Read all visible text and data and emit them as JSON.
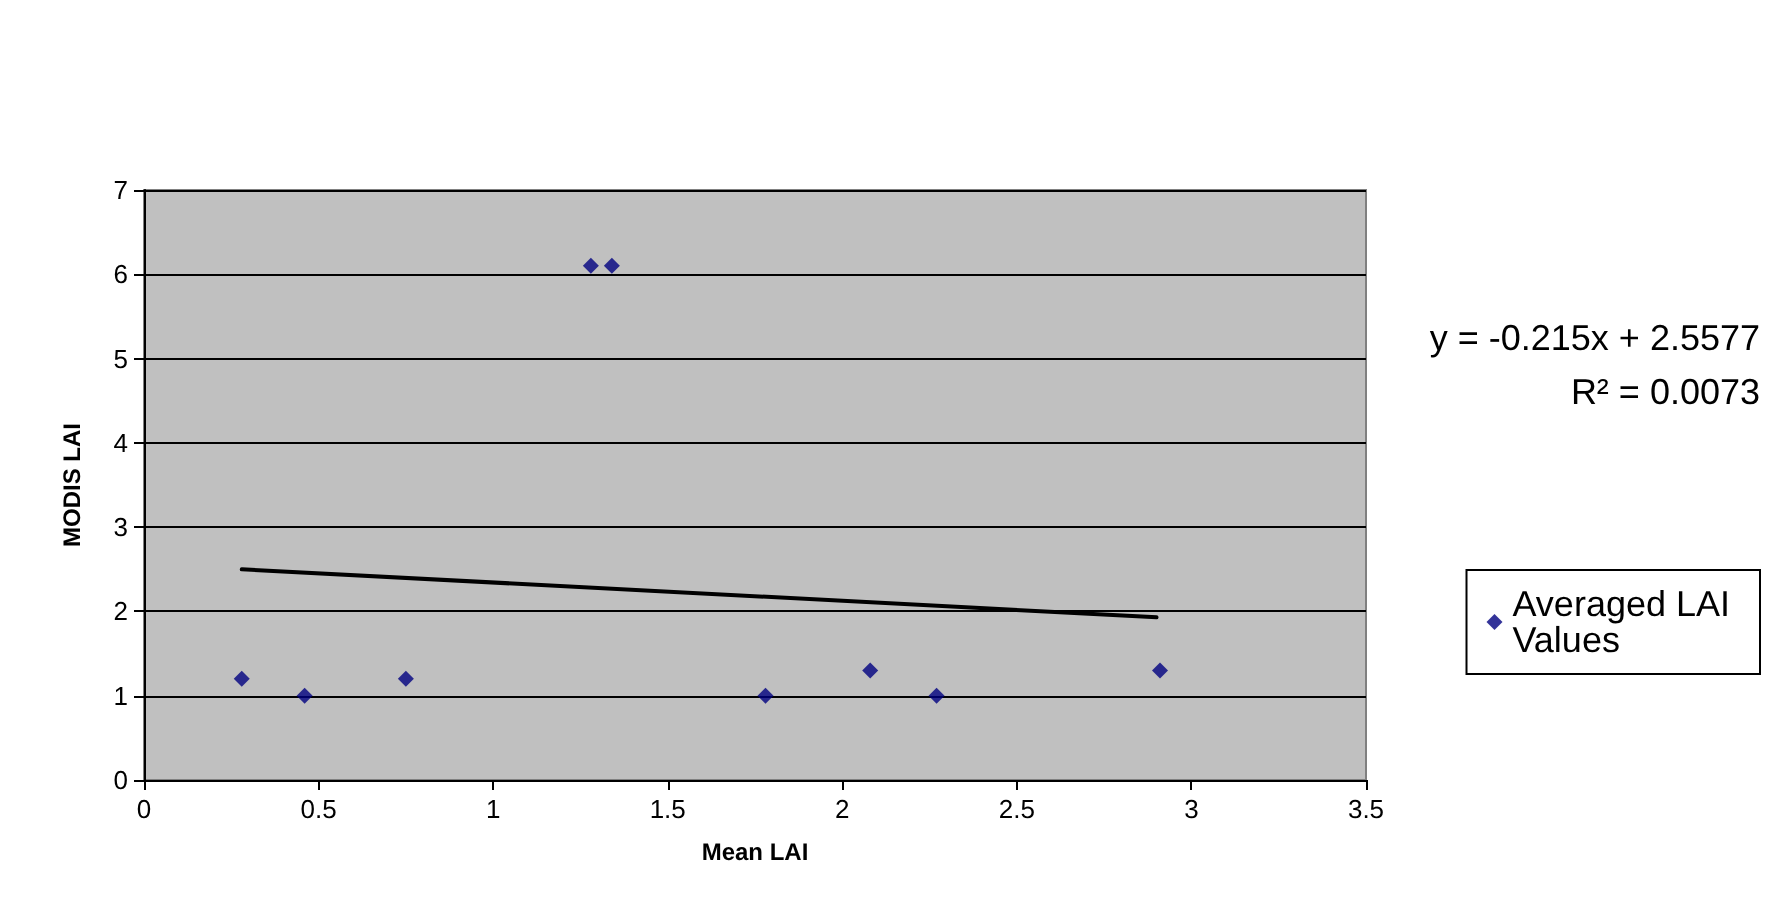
{
  "chart_data": {
    "type": "scatter",
    "xlabel": "Mean LAI",
    "ylabel": "MODIS LAI",
    "series": [
      {
        "name": "Averaged LAI Values",
        "color": "#000080",
        "marker": "diamond",
        "x": [
          0.28,
          0.46,
          0.75,
          1.28,
          1.34,
          1.78,
          2.08,
          2.27,
          2.91
        ],
        "values": [
          1.2,
          1.0,
          1.2,
          6.1,
          6.1,
          1.0,
          1.3,
          1.0,
          1.3
        ]
      },
      {
        "type": "line",
        "color": "#000000",
        "marker": "none",
        "x": [
          0.28,
          2.9
        ],
        "values": [
          2.5,
          1.93
        ]
      }
    ],
    "xlim": [
      0,
      3.5
    ],
    "xticks": [
      0,
      0.5,
      1,
      1.5,
      2,
      2.5,
      3,
      3.5
    ],
    "ylim": [
      0,
      7
    ],
    "yticks": [
      0,
      1,
      2,
      3,
      4,
      5,
      6,
      7
    ],
    "grid": "y",
    "legend": "right",
    "annotations": [
      "y = -0.215x + 2.5577",
      "R² = 0.0073"
    ]
  }
}
